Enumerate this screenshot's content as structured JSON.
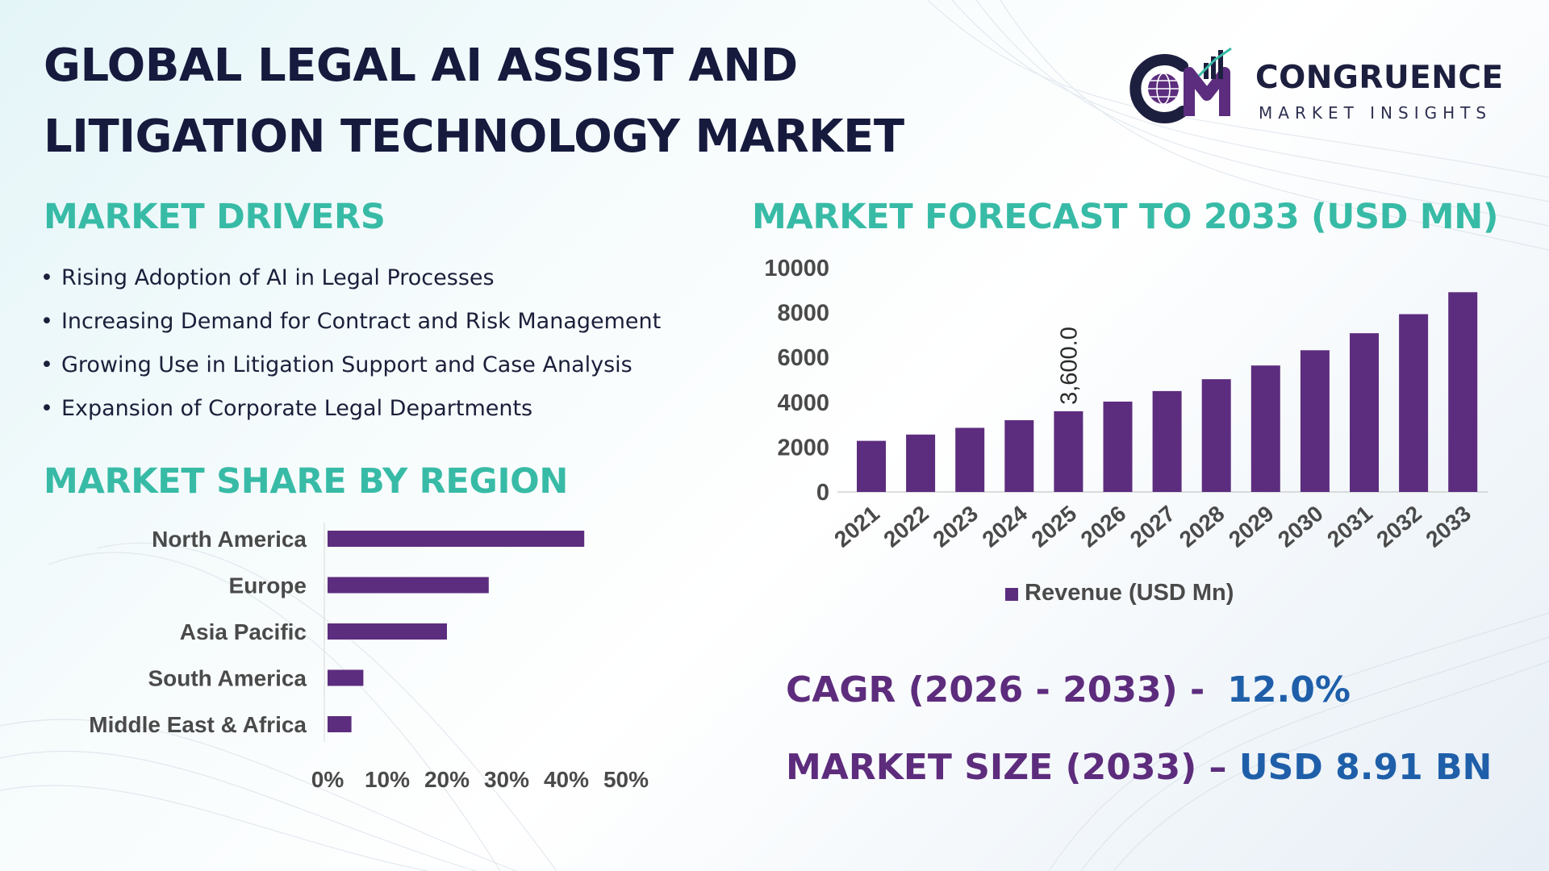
{
  "header": {
    "title_line1": "GLOBAL LEGAL AI ASSIST AND",
    "title_line2": "LITIGATION TECHNOLOGY MARKET"
  },
  "logo": {
    "name": "CONGRUENCE",
    "tagline": "MARKET INSIGHTS",
    "mark": "CM",
    "icon": "globe-bar-chart-icon"
  },
  "drivers": {
    "title": "MARKET DRIVERS",
    "items": [
      "Rising Adoption of AI in Legal Processes",
      "Increasing Demand for Contract and Risk Management",
      "Growing Use in Litigation Support and Case Analysis",
      "Expansion of Corporate Legal Departments"
    ]
  },
  "regions": {
    "title": "MARKET SHARE BY REGION"
  },
  "forecast": {
    "title": "MARKET FORECAST TO 2033 (USD MN)"
  },
  "stats": {
    "cagr_label": "CAGR (2026 - 2033) -",
    "cagr_value": "12.0%",
    "size_label": "MARKET SIZE (2033) –",
    "size_value": "USD 8.91 BN"
  },
  "colors": {
    "bar": "#5c2d7e",
    "section_title": "#38bba6",
    "title_text": "#161a3d",
    "stat_label": "#5d2c7d",
    "stat_value": "#1f5fa9",
    "axis_text": "#4a4a4a"
  },
  "chart_data": [
    {
      "type": "bar",
      "orientation": "horizontal",
      "categories": [
        "North America",
        "Europe",
        "Asia Pacific",
        "South America",
        "Middle East & Africa"
      ],
      "values": [
        43,
        27,
        20,
        6,
        4
      ],
      "x_unit": "%",
      "xlim": [
        0,
        50
      ],
      "xticks": [
        "0%",
        "10%",
        "20%",
        "30%",
        "40%",
        "50%"
      ],
      "title": "",
      "xlabel": "",
      "ylabel": "",
      "grid": false
    },
    {
      "type": "bar",
      "categories": [
        "2021",
        "2022",
        "2023",
        "2024",
        "2025",
        "2026",
        "2027",
        "2028",
        "2029",
        "2030",
        "2031",
        "2032",
        "2033"
      ],
      "series": [
        {
          "name": "Revenue (USD Mn)",
          "values": [
            2280,
            2560,
            2860,
            3200,
            3600,
            4030,
            4500,
            5030,
            5640,
            6320,
            7080,
            7930,
            8910
          ]
        }
      ],
      "data_labels": [
        {
          "category": "2025",
          "text": "3,600.0"
        }
      ],
      "ylim": [
        0,
        10000
      ],
      "yticks": [
        "0",
        "2000",
        "4000",
        "6000",
        "8000",
        "10000"
      ],
      "legend": "bottom",
      "title": "",
      "xlabel": "",
      "ylabel": "",
      "grid": false
    }
  ]
}
